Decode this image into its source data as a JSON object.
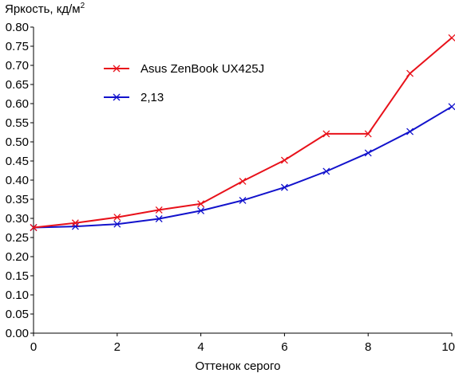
{
  "chart_data": {
    "type": "line",
    "title": "",
    "ylabel": "Яркость, кд/м",
    "ylabel_sup": "2",
    "xlabel": "Оттенок серого",
    "xlim": [
      0,
      10
    ],
    "ylim": [
      0,
      0.8
    ],
    "x_ticks": [
      "0",
      "2",
      "4",
      "6",
      "8",
      "10"
    ],
    "y_ticks": [
      "0.00",
      "0.05",
      "0.10",
      "0.15",
      "0.20",
      "0.25",
      "0.30",
      "0.35",
      "0.40",
      "0.45",
      "0.50",
      "0.55",
      "0.60",
      "0.65",
      "0.70",
      "0.75",
      "0.80"
    ],
    "grid": false,
    "legend_position": "top-left inside",
    "series": [
      {
        "name": "Asus ZenBook UX425J",
        "color": "#e8111a",
        "marker": "x",
        "x": [
          0,
          1,
          2,
          3,
          4,
          5,
          6,
          7,
          8,
          9,
          10
        ],
        "y": [
          0.276,
          0.288,
          0.303,
          0.322,
          0.338,
          0.397,
          0.452,
          0.521,
          0.521,
          0.679,
          0.772
        ]
      },
      {
        "name": "2,13",
        "color": "#1212cc",
        "marker": "x",
        "x": [
          0,
          1,
          2,
          3,
          4,
          5,
          6,
          7,
          8,
          9,
          10
        ],
        "y": [
          0.276,
          0.279,
          0.285,
          0.299,
          0.32,
          0.347,
          0.381,
          0.423,
          0.471,
          0.527,
          0.592
        ]
      }
    ]
  }
}
